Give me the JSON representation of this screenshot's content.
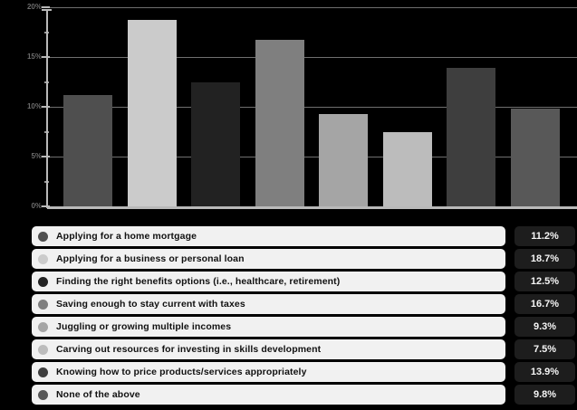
{
  "chart_data": {
    "type": "bar",
    "title": "",
    "xlabel": "",
    "ylabel": "",
    "categories": [
      "Applying for a home mortgage",
      "Applying for a business or personal loan",
      "Finding the right benefits options (i.e., healthcare, retirement)",
      "Saving enough to stay current with taxes",
      "Juggling or growing multiple incomes",
      "Carving out resources for investing in skills development",
      "Knowing how to price products/services appropriately",
      "None of the above"
    ],
    "values": [
      11.2,
      18.7,
      12.5,
      16.7,
      9.3,
      7.5,
      13.9,
      9.8
    ],
    "bar_colors": [
      "#4f4f4f",
      "#cbcbcb",
      "#222222",
      "#7f7f7f",
      "#a5a5a5",
      "#bcbcbc",
      "#3e3e3e",
      "#585858"
    ],
    "ylim": [
      0,
      20
    ],
    "yticks": [
      {
        "label": "0%",
        "value": 0
      },
      {
        "label": "5%",
        "value": 5
      },
      {
        "label": "10%",
        "value": 10
      },
      {
        "label": "15%",
        "value": 15
      },
      {
        "label": "20%",
        "value": 20
      }
    ],
    "minor_tick_step": 2.5,
    "grid": true,
    "background": "#000000",
    "legend_position": "bottom"
  },
  "legend": {
    "items": [
      {
        "label": "Applying for a home mortgage",
        "value": "11.2%",
        "color": "#4f4f4f"
      },
      {
        "label": "Applying for a business or personal loan",
        "value": "18.7%",
        "color": "#cbcbcb"
      },
      {
        "label": "Finding the right benefits options (i.e., healthcare, retirement)",
        "value": "12.5%",
        "color": "#222222"
      },
      {
        "label": "Saving enough to stay current with taxes",
        "value": "16.7%",
        "color": "#7f7f7f"
      },
      {
        "label": "Juggling or growing multiple incomes",
        "value": "9.3%",
        "color": "#a5a5a5"
      },
      {
        "label": "Carving out resources for investing in skills development",
        "value": "7.5%",
        "color": "#bcbcbc"
      },
      {
        "label": "Knowing how to price products/services appropriately",
        "value": "13.9%",
        "color": "#3e3e3e"
      },
      {
        "label": "None of the above",
        "value": "9.8%",
        "color": "#585858"
      }
    ]
  },
  "colors": {
    "background": "#000000",
    "axis_line": "#b9b9b9",
    "gridline": "#6f6f6f",
    "tick_label": "#6d6d6d",
    "label_box_bg": "#f1f1f1",
    "label_text": "#111111",
    "value_box_bg": "#1d1d1d",
    "value_text": "#f5f5f5"
  }
}
